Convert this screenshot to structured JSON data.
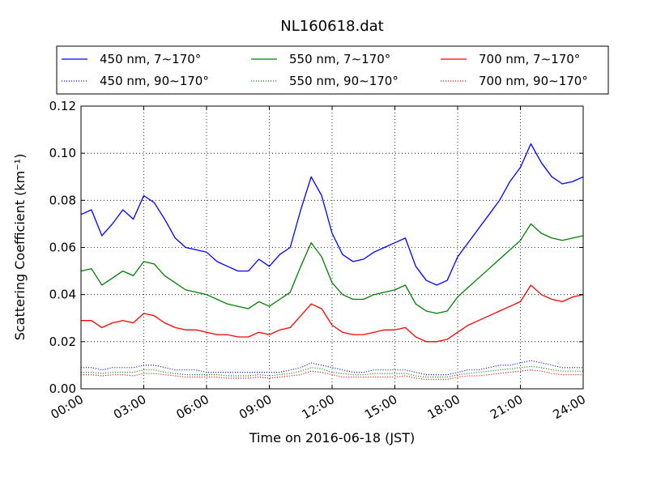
{
  "chart_data": {
    "type": "line",
    "title": "NL160618.dat",
    "xlabel": "Time on 2016-06-18 (JST)",
    "ylabel": "Scattering Coefficient (km⁻¹)",
    "x_unit": "hour of day",
    "xlim": [
      0,
      24
    ],
    "ylim": [
      0,
      0.12
    ],
    "x_ticks": [
      0,
      3,
      6,
      9,
      12,
      15,
      18,
      21,
      24
    ],
    "x_tick_labels": [
      "00:00",
      "03:00",
      "06:00",
      "09:00",
      "12:00",
      "15:00",
      "18:00",
      "21:00",
      "24:00"
    ],
    "y_ticks": [
      0,
      0.02,
      0.04,
      0.06,
      0.08,
      0.1,
      0.12
    ],
    "y_tick_labels": [
      "0.00",
      "0.02",
      "0.04",
      "0.06",
      "0.08",
      "0.10",
      "0.12"
    ],
    "grid": true,
    "legend_position": "top",
    "x": [
      0,
      0.5,
      1,
      1.5,
      2,
      2.5,
      3,
      3.5,
      4,
      4.5,
      5,
      5.5,
      6,
      6.5,
      7,
      7.5,
      8,
      8.5,
      9,
      9.5,
      10,
      10.5,
      11,
      11.5,
      12,
      12.5,
      13,
      13.5,
      14,
      14.5,
      15,
      15.5,
      16,
      16.5,
      17,
      17.5,
      18,
      18.5,
      19,
      19.5,
      20,
      20.5,
      21,
      21.5,
      22,
      22.5,
      23,
      23.5,
      24
    ],
    "series": [
      {
        "name": "450 nm, 7∼170°",
        "color": "#0000ff",
        "style": "solid",
        "values": [
          0.074,
          0.076,
          0.065,
          0.07,
          0.076,
          0.072,
          0.082,
          0.079,
          0.072,
          0.064,
          0.06,
          0.059,
          0.058,
          0.054,
          0.052,
          0.05,
          0.05,
          0.055,
          0.052,
          0.057,
          0.06,
          0.076,
          0.09,
          0.082,
          0.066,
          0.057,
          0.054,
          0.055,
          0.058,
          0.06,
          0.062,
          0.064,
          0.052,
          0.046,
          0.044,
          0.046,
          0.056,
          0.062,
          0.068,
          0.074,
          0.08,
          0.088,
          0.094,
          0.104,
          0.096,
          0.09,
          0.087,
          0.088,
          0.09
        ]
      },
      {
        "name": "550 nm, 7∼170°",
        "color": "#008000",
        "style": "solid",
        "values": [
          0.05,
          0.051,
          0.044,
          0.047,
          0.05,
          0.048,
          0.054,
          0.053,
          0.048,
          0.045,
          0.042,
          0.041,
          0.04,
          0.038,
          0.036,
          0.035,
          0.034,
          0.037,
          0.035,
          0.038,
          0.041,
          0.052,
          0.062,
          0.056,
          0.045,
          0.04,
          0.038,
          0.038,
          0.04,
          0.041,
          0.042,
          0.044,
          0.036,
          0.033,
          0.032,
          0.033,
          0.039,
          0.043,
          0.047,
          0.051,
          0.055,
          0.059,
          0.063,
          0.07,
          0.066,
          0.064,
          0.063,
          0.064,
          0.065
        ]
      },
      {
        "name": "700 nm, 7∼170°",
        "color": "#ff0000",
        "style": "solid",
        "values": [
          0.029,
          0.029,
          0.026,
          0.028,
          0.029,
          0.028,
          0.032,
          0.031,
          0.028,
          0.026,
          0.025,
          0.025,
          0.024,
          0.023,
          0.023,
          0.022,
          0.022,
          0.024,
          0.023,
          0.025,
          0.026,
          0.031,
          0.036,
          0.034,
          0.027,
          0.024,
          0.023,
          0.023,
          0.024,
          0.025,
          0.025,
          0.026,
          0.022,
          0.02,
          0.02,
          0.021,
          0.024,
          0.027,
          0.029,
          0.031,
          0.033,
          0.035,
          0.037,
          0.044,
          0.04,
          0.038,
          0.037,
          0.039,
          0.04
        ]
      },
      {
        "name": "450 nm, 90∼170°",
        "color": "#0000ff",
        "style": "dotted",
        "values": [
          0.009,
          0.009,
          0.008,
          0.009,
          0.009,
          0.009,
          0.01,
          0.01,
          0.009,
          0.008,
          0.008,
          0.008,
          0.007,
          0.007,
          0.007,
          0.007,
          0.007,
          0.007,
          0.007,
          0.007,
          0.008,
          0.009,
          0.011,
          0.01,
          0.009,
          0.008,
          0.007,
          0.007,
          0.008,
          0.008,
          0.008,
          0.008,
          0.007,
          0.006,
          0.006,
          0.006,
          0.007,
          0.008,
          0.008,
          0.009,
          0.01,
          0.01,
          0.011,
          0.012,
          0.011,
          0.01,
          0.009,
          0.009,
          0.009
        ]
      },
      {
        "name": "550 nm, 90∼170°",
        "color": "#008000",
        "style": "dotted",
        "values": [
          0.007,
          0.007,
          0.0065,
          0.007,
          0.007,
          0.007,
          0.008,
          0.008,
          0.007,
          0.0065,
          0.006,
          0.006,
          0.006,
          0.006,
          0.0055,
          0.0055,
          0.0055,
          0.006,
          0.0055,
          0.006,
          0.0065,
          0.0075,
          0.009,
          0.0085,
          0.007,
          0.0065,
          0.006,
          0.006,
          0.0065,
          0.0065,
          0.0065,
          0.0065,
          0.0055,
          0.005,
          0.005,
          0.005,
          0.006,
          0.0065,
          0.007,
          0.0075,
          0.008,
          0.0085,
          0.009,
          0.0095,
          0.009,
          0.008,
          0.0075,
          0.0075,
          0.0075
        ]
      },
      {
        "name": "700 nm, 90∼170°",
        "color": "#ff0000",
        "style": "dotted",
        "values": [
          0.006,
          0.006,
          0.0055,
          0.006,
          0.006,
          0.0055,
          0.0065,
          0.0065,
          0.006,
          0.0055,
          0.005,
          0.005,
          0.005,
          0.005,
          0.0045,
          0.0045,
          0.0045,
          0.005,
          0.0045,
          0.005,
          0.0055,
          0.006,
          0.0075,
          0.007,
          0.006,
          0.005,
          0.005,
          0.005,
          0.005,
          0.005,
          0.005,
          0.0055,
          0.0045,
          0.004,
          0.004,
          0.004,
          0.005,
          0.0055,
          0.0055,
          0.006,
          0.0065,
          0.007,
          0.0075,
          0.008,
          0.0075,
          0.0065,
          0.006,
          0.006,
          0.006
        ]
      }
    ],
    "legend_order": [
      0,
      1,
      2,
      3,
      4,
      5
    ],
    "legend_entries": [
      "450 nm, 7∼170°",
      "550 nm, 7∼170°",
      "700 nm, 7∼170°",
      "450 nm, 90∼170°",
      "550 nm, 90∼170°",
      "700 nm, 90∼170°"
    ]
  }
}
